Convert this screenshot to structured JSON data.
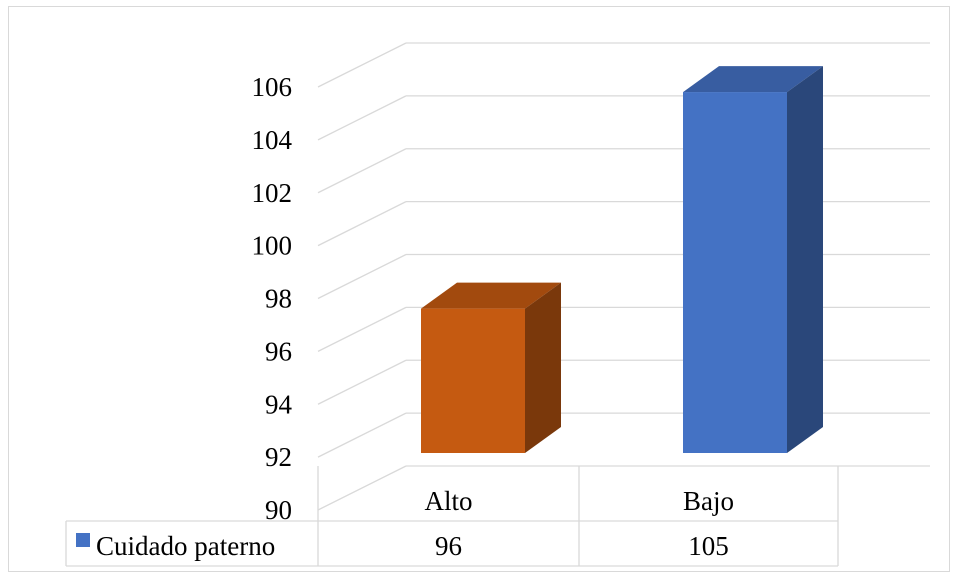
{
  "chart_data": {
    "type": "bar",
    "style": "3d-column",
    "categories": [
      "Alto",
      "Bajo"
    ],
    "series": [
      {
        "name": "Cuidado paterno",
        "values": [
          96,
          105
        ],
        "colors": [
          "#c55a11",
          "#4472c4"
        ]
      }
    ],
    "ylim": [
      90,
      106
    ],
    "yticks": [
      90,
      92,
      94,
      96,
      98,
      100,
      102,
      104,
      106
    ],
    "grid": true,
    "legend": "data-table-below",
    "data_table": true
  }
}
